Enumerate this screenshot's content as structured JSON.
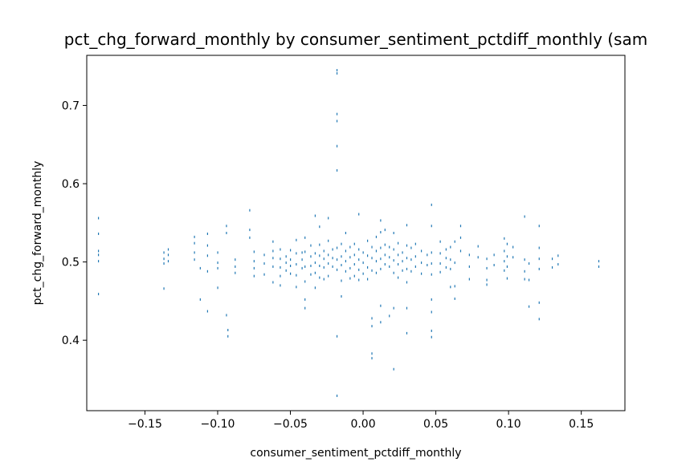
{
  "chart_data": {
    "type": "scatter",
    "title": "pct_chg_forward_monthly by consumer_sentiment_pctdiff_monthly (sam",
    "xlabel": "consumer_sentiment_pctdiff_monthly",
    "ylabel": "pct_chg_forward_monthly",
    "xlim": [
      -0.19,
      0.18
    ],
    "ylim": [
      0.31,
      0.764
    ],
    "xticks": [
      -0.15,
      -0.1,
      -0.05,
      0.0,
      0.05,
      0.1,
      0.15
    ],
    "xtick_labels": [
      "−0.15",
      "−0.10",
      "−0.05",
      "0.00",
      "0.05",
      "0.10",
      "0.15"
    ],
    "yticks": [
      0.4,
      0.5,
      0.6,
      0.7
    ],
    "ytick_labels": [
      "0.4",
      "0.5",
      "0.6",
      "0.7"
    ],
    "grid": false,
    "marker_color": "#1f77b4",
    "series": [
      {
        "points": [
          [
            -0.182,
            0.556
          ],
          [
            -0.182,
            0.536
          ],
          [
            -0.182,
            0.514
          ],
          [
            -0.182,
            0.509
          ],
          [
            -0.182,
            0.501
          ],
          [
            -0.182,
            0.459
          ],
          [
            -0.137,
            0.512
          ],
          [
            -0.137,
            0.504
          ],
          [
            -0.137,
            0.498
          ],
          [
            -0.137,
            0.466
          ],
          [
            -0.134,
            0.516
          ],
          [
            -0.134,
            0.509
          ],
          [
            -0.134,
            0.501
          ],
          [
            -0.116,
            0.532
          ],
          [
            -0.116,
            0.524
          ],
          [
            -0.116,
            0.512
          ],
          [
            -0.116,
            0.503
          ],
          [
            -0.112,
            0.492
          ],
          [
            -0.112,
            0.452
          ],
          [
            -0.107,
            0.536
          ],
          [
            -0.107,
            0.521
          ],
          [
            -0.107,
            0.508
          ],
          [
            -0.107,
            0.488
          ],
          [
            -0.107,
            0.437
          ],
          [
            -0.1,
            0.512
          ],
          [
            -0.1,
            0.499
          ],
          [
            -0.1,
            0.492
          ],
          [
            -0.1,
            0.467
          ],
          [
            -0.094,
            0.546
          ],
          [
            -0.094,
            0.537
          ],
          [
            -0.094,
            0.432
          ],
          [
            -0.093,
            0.413
          ],
          [
            -0.093,
            0.405
          ],
          [
            -0.088,
            0.503
          ],
          [
            -0.088,
            0.494
          ],
          [
            -0.088,
            0.486
          ],
          [
            -0.078,
            0.566
          ],
          [
            -0.078,
            0.541
          ],
          [
            -0.078,
            0.531
          ],
          [
            -0.075,
            0.513
          ],
          [
            -0.075,
            0.501
          ],
          [
            -0.075,
            0.492
          ],
          [
            -0.075,
            0.482
          ],
          [
            -0.068,
            0.509
          ],
          [
            -0.068,
            0.498
          ],
          [
            -0.068,
            0.484
          ],
          [
            -0.062,
            0.526
          ],
          [
            -0.062,
            0.514
          ],
          [
            -0.062,
            0.505
          ],
          [
            -0.062,
            0.494
          ],
          [
            -0.062,
            0.474
          ],
          [
            -0.057,
            0.516
          ],
          [
            -0.057,
            0.504
          ],
          [
            -0.057,
            0.493
          ],
          [
            -0.057,
            0.482
          ],
          [
            -0.057,
            0.47
          ],
          [
            -0.053,
            0.507
          ],
          [
            -0.053,
            0.499
          ],
          [
            -0.053,
            0.489
          ],
          [
            -0.05,
            0.515
          ],
          [
            -0.05,
            0.503
          ],
          [
            -0.05,
            0.495
          ],
          [
            -0.05,
            0.485
          ],
          [
            -0.046,
            0.528
          ],
          [
            -0.046,
            0.511
          ],
          [
            -0.046,
            0.497
          ],
          [
            -0.046,
            0.483
          ],
          [
            -0.046,
            0.468
          ],
          [
            -0.042,
            0.512
          ],
          [
            -0.042,
            0.503
          ],
          [
            -0.042,
            0.492
          ],
          [
            -0.04,
            0.531
          ],
          [
            -0.04,
            0.513
          ],
          [
            -0.04,
            0.494
          ],
          [
            -0.04,
            0.475
          ],
          [
            -0.04,
            0.452
          ],
          [
            -0.04,
            0.441
          ],
          [
            -0.036,
            0.521
          ],
          [
            -0.036,
            0.507
          ],
          [
            -0.036,
            0.495
          ],
          [
            -0.036,
            0.484
          ],
          [
            -0.033,
            0.559
          ],
          [
            -0.033,
            0.511
          ],
          [
            -0.033,
            0.499
          ],
          [
            -0.033,
            0.486
          ],
          [
            -0.033,
            0.467
          ],
          [
            -0.03,
            0.545
          ],
          [
            -0.03,
            0.522
          ],
          [
            -0.03,
            0.508
          ],
          [
            -0.03,
            0.495
          ],
          [
            -0.03,
            0.48
          ],
          [
            -0.027,
            0.514
          ],
          [
            -0.027,
            0.504
          ],
          [
            -0.027,
            0.493
          ],
          [
            -0.027,
            0.478
          ],
          [
            -0.024,
            0.556
          ],
          [
            -0.024,
            0.527
          ],
          [
            -0.024,
            0.509
          ],
          [
            -0.024,
            0.498
          ],
          [
            -0.024,
            0.482
          ],
          [
            -0.021,
            0.516
          ],
          [
            -0.021,
            0.505
          ],
          [
            -0.021,
            0.494
          ],
          [
            -0.018,
            0.745
          ],
          [
            -0.018,
            0.741
          ],
          [
            -0.018,
            0.689
          ],
          [
            -0.018,
            0.68
          ],
          [
            -0.018,
            0.648
          ],
          [
            -0.018,
            0.617
          ],
          [
            -0.018,
            0.518
          ],
          [
            -0.018,
            0.503
          ],
          [
            -0.018,
            0.49
          ],
          [
            -0.018,
            0.405
          ],
          [
            -0.018,
            0.329
          ],
          [
            -0.015,
            0.523
          ],
          [
            -0.015,
            0.507
          ],
          [
            -0.015,
            0.496
          ],
          [
            -0.015,
            0.476
          ],
          [
            -0.015,
            0.456
          ],
          [
            -0.012,
            0.537
          ],
          [
            -0.012,
            0.514
          ],
          [
            -0.012,
            0.501
          ],
          [
            -0.012,
            0.488
          ],
          [
            -0.009,
            0.519
          ],
          [
            -0.009,
            0.506
          ],
          [
            -0.009,
            0.492
          ],
          [
            -0.009,
            0.479
          ],
          [
            -0.006,
            0.523
          ],
          [
            -0.006,
            0.509
          ],
          [
            -0.006,
            0.497
          ],
          [
            -0.006,
            0.482
          ],
          [
            -0.003,
            0.561
          ],
          [
            -0.003,
            0.516
          ],
          [
            -0.003,
            0.503
          ],
          [
            -0.003,
            0.49
          ],
          [
            -0.003,
            0.477
          ],
          [
            0.0,
            0.512
          ],
          [
            0.0,
            0.499
          ],
          [
            0.0,
            0.485
          ],
          [
            0.003,
            0.527
          ],
          [
            0.003,
            0.508
          ],
          [
            0.003,
            0.493
          ],
          [
            0.003,
            0.478
          ],
          [
            0.006,
            0.519
          ],
          [
            0.006,
            0.505
          ],
          [
            0.006,
            0.489
          ],
          [
            0.006,
            0.428
          ],
          [
            0.006,
            0.418
          ],
          [
            0.006,
            0.383
          ],
          [
            0.006,
            0.377
          ],
          [
            0.009,
            0.532
          ],
          [
            0.009,
            0.514
          ],
          [
            0.009,
            0.501
          ],
          [
            0.009,
            0.486
          ],
          [
            0.012,
            0.553
          ],
          [
            0.012,
            0.538
          ],
          [
            0.012,
            0.518
          ],
          [
            0.012,
            0.504
          ],
          [
            0.012,
            0.491
          ],
          [
            0.012,
            0.444
          ],
          [
            0.012,
            0.423
          ],
          [
            0.015,
            0.541
          ],
          [
            0.015,
            0.522
          ],
          [
            0.015,
            0.509
          ],
          [
            0.015,
            0.497
          ],
          [
            0.018,
            0.519
          ],
          [
            0.018,
            0.506
          ],
          [
            0.018,
            0.494
          ],
          [
            0.018,
            0.431
          ],
          [
            0.021,
            0.537
          ],
          [
            0.021,
            0.516
          ],
          [
            0.021,
            0.502
          ],
          [
            0.021,
            0.486
          ],
          [
            0.021,
            0.441
          ],
          [
            0.021,
            0.363
          ],
          [
            0.024,
            0.524
          ],
          [
            0.024,
            0.509
          ],
          [
            0.024,
            0.497
          ],
          [
            0.024,
            0.48
          ],
          [
            0.027,
            0.512
          ],
          [
            0.027,
            0.501
          ],
          [
            0.027,
            0.489
          ],
          [
            0.03,
            0.547
          ],
          [
            0.03,
            0.521
          ],
          [
            0.03,
            0.505
          ],
          [
            0.03,
            0.491
          ],
          [
            0.03,
            0.474
          ],
          [
            0.03,
            0.441
          ],
          [
            0.03,
            0.409
          ],
          [
            0.033,
            0.518
          ],
          [
            0.033,
            0.503
          ],
          [
            0.033,
            0.488
          ],
          [
            0.036,
            0.523
          ],
          [
            0.036,
            0.507
          ],
          [
            0.036,
            0.494
          ],
          [
            0.04,
            0.514
          ],
          [
            0.04,
            0.499
          ],
          [
            0.04,
            0.485
          ],
          [
            0.044,
            0.509
          ],
          [
            0.044,
            0.496
          ],
          [
            0.047,
            0.573
          ],
          [
            0.047,
            0.546
          ],
          [
            0.047,
            0.512
          ],
          [
            0.047,
            0.498
          ],
          [
            0.047,
            0.484
          ],
          [
            0.047,
            0.452
          ],
          [
            0.047,
            0.436
          ],
          [
            0.047,
            0.412
          ],
          [
            0.047,
            0.404
          ],
          [
            0.053,
            0.526
          ],
          [
            0.053,
            0.511
          ],
          [
            0.053,
            0.498
          ],
          [
            0.053,
            0.487
          ],
          [
            0.057,
            0.516
          ],
          [
            0.057,
            0.505
          ],
          [
            0.057,
            0.493
          ],
          [
            0.06,
            0.519
          ],
          [
            0.06,
            0.503
          ],
          [
            0.06,
            0.491
          ],
          [
            0.06,
            0.468
          ],
          [
            0.063,
            0.526
          ],
          [
            0.063,
            0.499
          ],
          [
            0.063,
            0.469
          ],
          [
            0.063,
            0.453
          ],
          [
            0.067,
            0.546
          ],
          [
            0.067,
            0.531
          ],
          [
            0.067,
            0.514
          ],
          [
            0.073,
            0.509
          ],
          [
            0.073,
            0.494
          ],
          [
            0.073,
            0.478
          ],
          [
            0.079,
            0.52
          ],
          [
            0.079,
            0.506
          ],
          [
            0.085,
            0.504
          ],
          [
            0.085,
            0.492
          ],
          [
            0.085,
            0.477
          ],
          [
            0.085,
            0.471
          ],
          [
            0.09,
            0.509
          ],
          [
            0.09,
            0.496
          ],
          [
            0.097,
            0.53
          ],
          [
            0.097,
            0.514
          ],
          [
            0.097,
            0.501
          ],
          [
            0.097,
            0.489
          ],
          [
            0.099,
            0.523
          ],
          [
            0.099,
            0.507
          ],
          [
            0.099,
            0.494
          ],
          [
            0.099,
            0.479
          ],
          [
            0.103,
            0.519
          ],
          [
            0.103,
            0.506
          ],
          [
            0.111,
            0.558
          ],
          [
            0.111,
            0.503
          ],
          [
            0.111,
            0.488
          ],
          [
            0.111,
            0.478
          ],
          [
            0.114,
            0.498
          ],
          [
            0.114,
            0.477
          ],
          [
            0.114,
            0.443
          ],
          [
            0.121,
            0.546
          ],
          [
            0.121,
            0.518
          ],
          [
            0.121,
            0.504
          ],
          [
            0.121,
            0.491
          ],
          [
            0.121,
            0.448
          ],
          [
            0.121,
            0.427
          ],
          [
            0.13,
            0.504
          ],
          [
            0.13,
            0.493
          ],
          [
            0.134,
            0.508
          ],
          [
            0.134,
            0.497
          ],
          [
            0.162,
            0.501
          ],
          [
            0.162,
            0.494
          ]
        ]
      }
    ]
  }
}
